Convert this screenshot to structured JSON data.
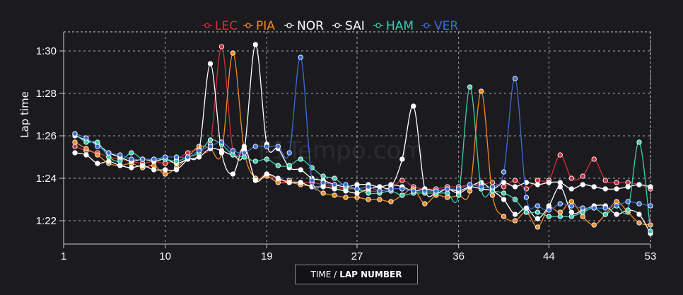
{
  "watermark": "F1Tempo.com",
  "x_axis_button": {
    "prefix": "TIME /",
    "label": "LAP NUMBER"
  },
  "chart_data": {
    "type": "line",
    "xlabel": "TIME / LAP NUMBER",
    "ylabel": "Lap time",
    "xlim": [
      1,
      53
    ],
    "ylim": [
      80.9,
      90.9
    ],
    "x_ticks": [
      1,
      10,
      19,
      27,
      36,
      44,
      53
    ],
    "y_ticks": [
      82,
      84,
      86,
      88,
      90
    ],
    "y_tick_labels": [
      "1:22",
      "1:24",
      "1:26",
      "1:28",
      "1:30"
    ],
    "grid": true,
    "legend_position": "top-center",
    "series": [
      {
        "name": "LEC",
        "color": "#d0303a",
        "x": [
          2,
          3,
          4,
          5,
          6,
          7,
          8,
          9,
          10,
          11,
          12,
          13,
          14,
          15,
          16,
          17,
          18,
          19,
          20,
          21,
          22,
          23,
          24,
          25,
          26,
          27,
          28,
          29,
          30,
          31,
          32,
          33,
          34,
          35,
          36,
          37,
          38,
          39,
          40,
          41,
          42,
          43,
          44,
          45,
          46,
          47,
          48,
          49,
          50,
          51,
          52,
          53
        ],
        "values": [
          85.5,
          85.3,
          85.2,
          85.0,
          84.9,
          84.8,
          84.7,
          84.8,
          84.7,
          84.9,
          85.2,
          85.4,
          85.6,
          90.2,
          85.3,
          85.4,
          84.0,
          84.2,
          83.9,
          83.9,
          83.8,
          83.8,
          83.7,
          83.6,
          83.5,
          83.5,
          83.4,
          83.4,
          83.5,
          83.9,
          83.6,
          83.5,
          83.5,
          83.6,
          83.6,
          83.7,
          83.7,
          83.8,
          83.6,
          83.9,
          83.5,
          83.9,
          83.9,
          85.1,
          84.0,
          84.1,
          84.9,
          83.9,
          83.8,
          83.8,
          83.7,
          83.5
        ]
      },
      {
        "name": "PIA",
        "color": "#f08a24",
        "x": [
          2,
          3,
          4,
          5,
          6,
          7,
          8,
          9,
          10,
          11,
          12,
          13,
          14,
          15,
          16,
          17,
          18,
          19,
          20,
          21,
          22,
          23,
          24,
          25,
          26,
          27,
          28,
          29,
          30,
          31,
          32,
          33,
          34,
          35,
          36,
          37,
          38,
          39,
          40,
          41,
          42,
          43,
          44,
          45,
          46,
          47,
          48,
          49,
          50,
          51,
          52,
          53
        ],
        "values": [
          85.7,
          85.4,
          85.1,
          84.7,
          84.6,
          84.7,
          84.5,
          84.6,
          84.2,
          84.5,
          85.0,
          85.5,
          85.4,
          85.2,
          89.9,
          85.3,
          84.0,
          84.1,
          83.8,
          83.8,
          83.7,
          83.6,
          83.3,
          83.2,
          83.1,
          83.1,
          83.0,
          83.0,
          82.9,
          83.2,
          83.5,
          82.8,
          83.2,
          83.1,
          83.2,
          83.4,
          88.1,
          83.2,
          82.2,
          82.0,
          82.4,
          81.7,
          82.6,
          82.4,
          82.9,
          82.2,
          81.8,
          82.3,
          82.9,
          82.4,
          81.9,
          81.8
        ]
      },
      {
        "name": "NOR",
        "color": "#ffffff",
        "x": [
          2,
          3,
          4,
          5,
          6,
          7,
          8,
          9,
          10,
          11,
          12,
          13,
          14,
          15,
          16,
          17,
          18,
          19,
          20,
          21,
          22,
          23,
          24,
          25,
          26,
          27,
          28,
          29,
          30,
          31,
          32,
          33,
          34,
          35,
          36,
          37,
          38,
          39,
          40,
          41,
          42,
          43,
          44,
          45,
          46,
          47,
          48,
          49,
          50,
          51,
          52,
          53
        ],
        "values": [
          85.2,
          85.1,
          84.7,
          84.8,
          84.6,
          84.5,
          84.6,
          84.4,
          84.4,
          84.4,
          84.9,
          85.3,
          89.4,
          85.2,
          84.2,
          85.5,
          83.9,
          84.2,
          84.0,
          83.8,
          83.8,
          83.6,
          83.6,
          83.5,
          83.4,
          83.3,
          83.5,
          83.6,
          83.6,
          84.9,
          87.4,
          83.5,
          83.3,
          83.5,
          83.4,
          83.6,
          83.5,
          83.4,
          83.0,
          82.3,
          82.6,
          82.1,
          82.7,
          83.6,
          82.4,
          82.5,
          82.7,
          82.7,
          82.3,
          82.5,
          82.3,
          81.4
        ]
      },
      {
        "name": "SAI",
        "color": "#ffffff",
        "x": [
          2,
          3,
          4,
          5,
          6,
          7,
          8,
          9,
          10,
          11,
          12,
          13,
          14,
          15,
          16,
          17,
          18,
          19,
          20,
          21,
          22,
          23,
          24,
          25,
          26,
          27,
          28,
          29,
          30,
          31,
          32,
          33,
          34,
          35,
          36,
          37,
          38,
          39,
          40,
          41,
          42,
          43,
          44,
          45,
          46,
          47,
          48,
          49,
          50,
          51,
          52,
          53
        ],
        "values": [
          86.0,
          85.8,
          85.6,
          85.2,
          85.0,
          84.8,
          84.9,
          84.8,
          84.9,
          84.7,
          84.9,
          85.0,
          85.4,
          85.3,
          85.1,
          85.3,
          90.3,
          85.6,
          85.4,
          84.5,
          84.4,
          84.0,
          83.9,
          83.7,
          83.6,
          83.7,
          83.7,
          83.6,
          83.7,
          83.6,
          83.4,
          83.5,
          83.4,
          83.5,
          83.3,
          83.6,
          83.8,
          83.5,
          83.8,
          83.6,
          83.8,
          83.7,
          83.8,
          83.8,
          83.5,
          83.7,
          83.6,
          83.5,
          83.5,
          83.6,
          83.7,
          83.6
        ]
      },
      {
        "name": "HAM",
        "color": "#3ecfae",
        "x": [
          2,
          3,
          4,
          5,
          6,
          7,
          8,
          9,
          10,
          11,
          12,
          13,
          14,
          15,
          16,
          17,
          18,
          19,
          20,
          21,
          22,
          23,
          24,
          25,
          26,
          27,
          28,
          29,
          30,
          31,
          32,
          33,
          34,
          35,
          36,
          37,
          38,
          39,
          40,
          41,
          42,
          43,
          44,
          45,
          46,
          47,
          48,
          49,
          50,
          51,
          52,
          53
        ],
        "values": [
          86.1,
          85.7,
          85.7,
          85.0,
          84.8,
          85.2,
          84.9,
          84.9,
          84.9,
          84.8,
          85.0,
          85.2,
          85.8,
          85.6,
          85.1,
          85.0,
          84.8,
          84.9,
          84.6,
          84.6,
          84.9,
          84.5,
          84.1,
          84.0,
          83.6,
          83.5,
          83.3,
          83.3,
          83.4,
          83.2,
          83.3,
          83.3,
          83.3,
          83.3,
          83.2,
          88.3,
          83.5,
          83.4,
          83.3,
          83.0,
          82.4,
          82.4,
          82.2,
          82.2,
          82.2,
          82.4,
          82.6,
          82.3,
          82.7,
          82.5,
          85.7,
          81.5
        ]
      },
      {
        "name": "VER",
        "color": "#3a6fd8",
        "x": [
          2,
          3,
          4,
          5,
          6,
          7,
          8,
          9,
          10,
          11,
          12,
          13,
          14,
          15,
          16,
          17,
          18,
          19,
          20,
          21,
          22,
          23,
          24,
          25,
          26,
          27,
          28,
          29,
          30,
          31,
          32,
          33,
          34,
          35,
          36,
          37,
          38,
          39,
          40,
          41,
          42,
          43,
          44,
          45,
          46,
          47,
          48,
          49,
          50,
          51,
          52,
          53
        ],
        "values": [
          86.1,
          85.9,
          85.5,
          85.2,
          85.1,
          84.9,
          84.9,
          84.9,
          85.0,
          85.0,
          85.0,
          85.3,
          85.5,
          85.7,
          85.3,
          85.2,
          85.5,
          85.5,
          85.5,
          85.2,
          89.7,
          83.9,
          83.8,
          83.7,
          83.7,
          83.5,
          83.6,
          83.4,
          83.5,
          83.5,
          83.4,
          83.4,
          83.4,
          83.5,
          83.5,
          83.7,
          83.6,
          83.6,
          84.3,
          88.7,
          83.1,
          82.7,
          82.5,
          82.8,
          82.7,
          82.6,
          82.6,
          82.6,
          82.7,
          82.9,
          82.8,
          82.7
        ]
      }
    ]
  }
}
